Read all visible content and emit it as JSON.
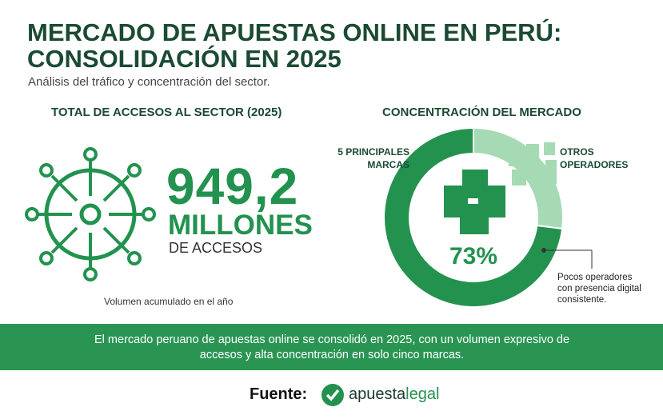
{
  "header": {
    "title_line1": "MERCADO DE APUESTAS ONLINE EN PERÚ:",
    "title_line2": "CONSOLIDACIÓN EN 2025",
    "subtitle": "Análisis del tráfico y concentración del sector."
  },
  "left": {
    "heading": "TOTAL DE ACCESOS AL SECTOR (2025)",
    "number": "949,2",
    "unit": "MILLONES",
    "unit_sub": "DE ACCESOS",
    "note": "Volumen acumulado en el año"
  },
  "chart_data": {
    "type": "pie",
    "title": "CONCENTRACIÓN DEL MERCADO",
    "categories": [
      "5 PRINCIPALES MARCAS",
      "OTROS OPERADORES"
    ],
    "values": [
      73,
      27
    ],
    "value_labels": [
      "73%",
      null
    ],
    "colors": [
      "#23924f",
      "#a6dab4"
    ],
    "annotation": "Pocos operadores con presencia digital consistente."
  },
  "banner": {
    "text": "El mercado peruano de apuestas online se consolidó en 2025, con un volumen expresivo de accesos y alta concentración en solo cinco marcas."
  },
  "footer": {
    "label": "Fuente:",
    "brand_1": "apuesta",
    "brand_2": "legal"
  }
}
